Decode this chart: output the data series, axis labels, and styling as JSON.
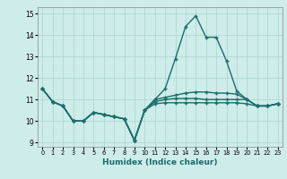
{
  "title": "",
  "xlabel": "Humidex (Indice chaleur)",
  "xlim": [
    -0.5,
    23.5
  ],
  "ylim": [
    8.8,
    15.3
  ],
  "background_color": "#ceecea",
  "grid_color": "#aed8d4",
  "line_color": "#1a6e6a",
  "xticks": [
    0,
    1,
    2,
    3,
    4,
    5,
    6,
    7,
    8,
    9,
    10,
    11,
    12,
    13,
    14,
    15,
    16,
    17,
    18,
    19,
    20,
    21,
    22,
    23
  ],
  "yticks": [
    9,
    10,
    11,
    12,
    13,
    14,
    15
  ],
  "y_main": [
    11.5,
    10.9,
    10.7,
    10.0,
    10.0,
    10.4,
    10.3,
    10.2,
    10.1,
    9.1,
    10.5,
    11.0,
    11.5,
    12.9,
    14.4,
    14.9,
    13.9,
    13.9,
    12.8,
    11.4,
    11.0,
    10.7,
    10.7,
    10.8
  ],
  "y_flat1": [
    11.5,
    10.9,
    10.7,
    10.0,
    10.0,
    10.4,
    10.3,
    10.2,
    10.1,
    9.1,
    10.5,
    11.0,
    11.1,
    11.2,
    11.3,
    11.35,
    11.35,
    11.3,
    11.3,
    11.25,
    11.0,
    10.7,
    10.7,
    10.8
  ],
  "y_flat2": [
    11.5,
    10.9,
    10.7,
    10.0,
    10.0,
    10.4,
    10.3,
    10.2,
    10.1,
    9.1,
    10.5,
    10.9,
    11.0,
    11.05,
    11.05,
    11.05,
    11.0,
    11.0,
    11.0,
    11.0,
    11.0,
    10.7,
    10.7,
    10.8
  ],
  "y_flat3": [
    11.5,
    10.9,
    10.7,
    10.0,
    10.0,
    10.4,
    10.3,
    10.2,
    10.1,
    9.1,
    10.5,
    10.8,
    10.85,
    10.85,
    10.85,
    10.85,
    10.85,
    10.85,
    10.85,
    10.85,
    10.8,
    10.7,
    10.7,
    10.8
  ]
}
